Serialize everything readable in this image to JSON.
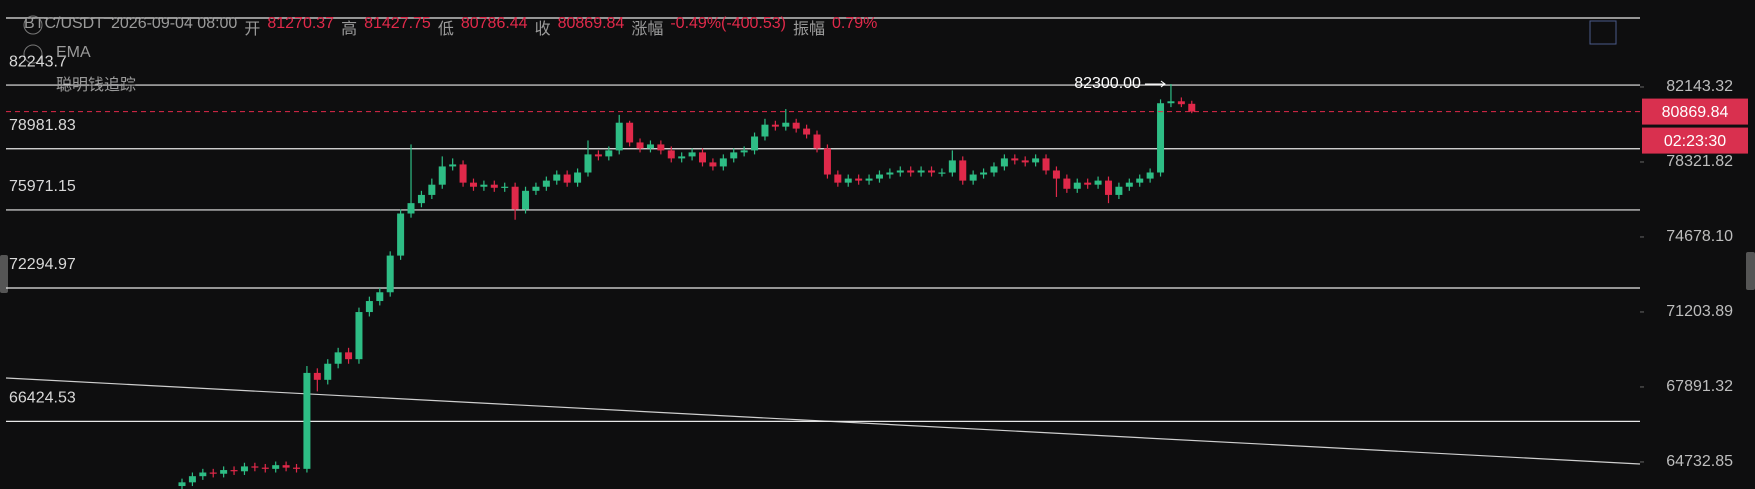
{
  "chart_data": {
    "type": "candlestick",
    "header": {
      "symbol": "BTC/USDT",
      "time": "2026-09-04 08:00",
      "open_label": "开",
      "high_label": "高",
      "low_label": "低",
      "close_label": "收",
      "change_label": "涨幅",
      "change": "-0.49%(-400.53)",
      "amplitude_label": "振幅",
      "amplitude": "0.79%"
    },
    "indicators": [
      "EMA",
      "聪明钱追踪"
    ],
    "up_color": "#2ebd85",
    "down_color": "#e0294a",
    "log_scale": true,
    "ylim": [
      63630,
      86810
    ],
    "yticks": [
      82143.32,
      78321.82,
      {
        "value": 74678.1,
        "label": "74678.10"
      },
      71203.89,
      67891.32,
      64732.85
    ],
    "levels": [
      82243.7,
      78981.83,
      75971.15,
      72294.97,
      66424.53
    ],
    "max_annotation": "82300.00",
    "countdown": "02:23:30",
    "open": [
      63750,
      63900,
      64150,
      64300,
      64250,
      64400,
      64350,
      64550,
      64500,
      64450,
      64600,
      64500,
      64450,
      68500,
      68200,
      68900,
      69400,
      69100,
      71200,
      71700,
      72100,
      73800,
      75800,
      76300,
      76700,
      77200,
      78100,
      78200,
      77300,
      77100,
      77200,
      77050,
      77100,
      76000,
      76900,
      77100,
      77400,
      77700,
      77300,
      77800,
      78700,
      78600,
      78900,
      80300,
      79300,
      79000,
      79200,
      78900,
      78500,
      78600,
      78800,
      78300,
      78100,
      78500,
      78800,
      78900,
      79600,
      80200,
      80100,
      80300,
      80000,
      79700,
      79000,
      77700,
      77300,
      77500,
      77400,
      77500,
      77700,
      77800,
      77900,
      77800,
      77900,
      77800,
      77800,
      78400,
      77400,
      77700,
      77800,
      78100,
      78500,
      78400,
      78300,
      78500,
      77900,
      77500,
      77000,
      77300,
      77200,
      77400,
      76700,
      77100,
      77300,
      77500,
      77800,
      81300,
      81400,
      81270.37
    ],
    "high": [
      64050,
      64300,
      64450,
      64450,
      64550,
      64550,
      64700,
      64700,
      64650,
      64750,
      64750,
      64650,
      68800,
      68700,
      69100,
      69600,
      69600,
      71400,
      71900,
      72300,
      74000,
      76000,
      79200,
      76900,
      77500,
      78600,
      78500,
      78400,
      77500,
      77400,
      77400,
      77300,
      77300,
      77100,
      77300,
      77600,
      77900,
      77900,
      78000,
      79400,
      78900,
      79100,
      80700,
      80400,
      79500,
      79400,
      79400,
      79100,
      78800,
      79000,
      79000,
      78500,
      78700,
      79000,
      79100,
      79800,
      80500,
      80400,
      81000,
      80500,
      80200,
      79900,
      79200,
      77900,
      77700,
      77700,
      77700,
      77900,
      78000,
      78100,
      78100,
      78100,
      78100,
      78000,
      78900,
      78600,
      77900,
      78000,
      78300,
      78700,
      78700,
      78600,
      78700,
      78700,
      78100,
      77700,
      77500,
      77500,
      77600,
      77600,
      77300,
      77500,
      77700,
      78000,
      81500,
      82300,
      81600,
      81427.75
    ],
    "low": [
      63600,
      63750,
      64000,
      64100,
      64100,
      64200,
      64200,
      64350,
      64300,
      64300,
      64350,
      64300,
      64300,
      67700,
      68000,
      68700,
      68900,
      68900,
      71000,
      71500,
      71900,
      73600,
      75600,
      76100,
      76500,
      77000,
      77900,
      77100,
      76900,
      76900,
      76850,
      76850,
      75500,
      75800,
      76700,
      76900,
      77200,
      77100,
      77100,
      77600,
      78400,
      78400,
      78700,
      79100,
      78800,
      78800,
      78700,
      78300,
      78300,
      78400,
      78100,
      77900,
      77900,
      78300,
      78600,
      78700,
      79400,
      79900,
      79900,
      79800,
      79500,
      78800,
      77500,
      77100,
      77100,
      77200,
      77200,
      77300,
      77500,
      77600,
      77600,
      77600,
      77600,
      77600,
      77600,
      77200,
      77200,
      77500,
      77600,
      77900,
      78200,
      78100,
      78100,
      77700,
      76600,
      76800,
      76800,
      77000,
      77000,
      76300,
      76500,
      76900,
      77100,
      77300,
      77600,
      81100,
      81100,
      80786.44
    ],
    "close": [
      63900,
      64150,
      64300,
      64250,
      64400,
      64350,
      64550,
      64500,
      64450,
      64600,
      64500,
      64450,
      68500,
      68200,
      68900,
      69400,
      69100,
      71200,
      71700,
      72100,
      73800,
      75800,
      76300,
      76700,
      77200,
      78100,
      78200,
      77300,
      77100,
      77200,
      77050,
      77100,
      76000,
      76900,
      77100,
      77400,
      77700,
      77300,
      77800,
      78700,
      78600,
      78900,
      80300,
      79300,
      79000,
      79200,
      78900,
      78500,
      78600,
      78800,
      78300,
      78100,
      78500,
      78800,
      78900,
      79600,
      80200,
      80100,
      80300,
      80000,
      79700,
      79000,
      77700,
      77300,
      77500,
      77400,
      77500,
      77700,
      77800,
      77900,
      77800,
      77900,
      77800,
      77800,
      78400,
      77400,
      77700,
      77800,
      78100,
      78500,
      78400,
      78300,
      78500,
      77900,
      77500,
      77000,
      77300,
      77200,
      77400,
      76700,
      77100,
      77300,
      77500,
      77800,
      81300,
      81400,
      81250,
      80869.84
    ]
  }
}
